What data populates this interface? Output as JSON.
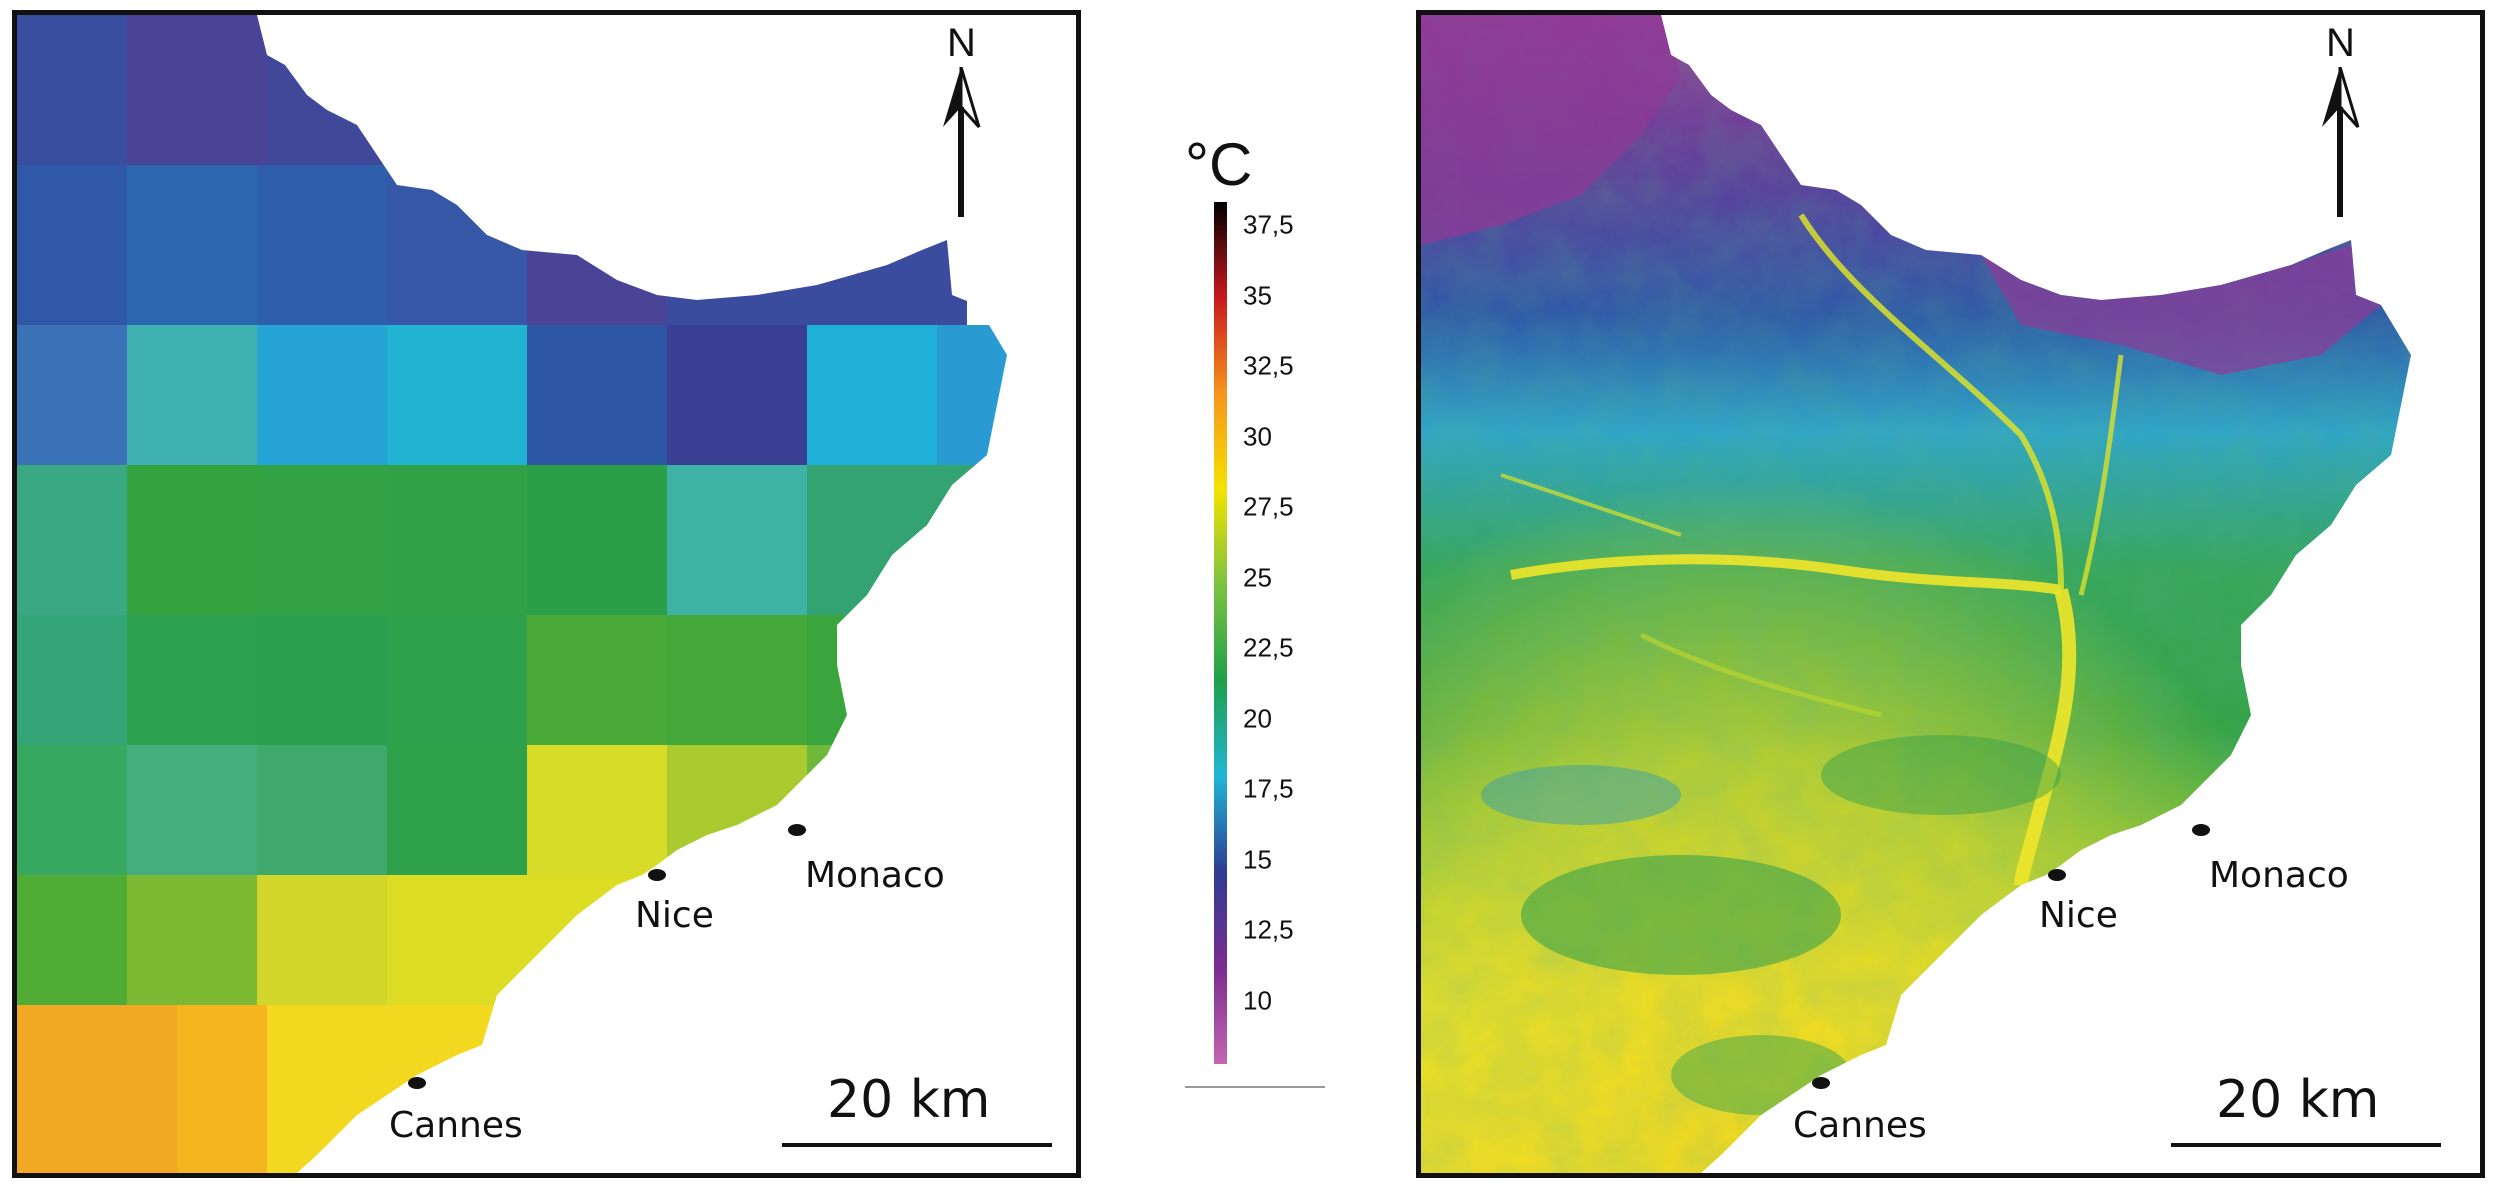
{
  "legend": {
    "unit": "°C",
    "ticks": [
      "37,5",
      "35",
      "32,5",
      "30",
      "27,5",
      "25",
      "22,5",
      "20",
      "17,5",
      "15",
      "12,5",
      "10"
    ],
    "gradient_colors": [
      "#000000",
      "#c8191e",
      "#f7941d",
      "#f4e300",
      "#7cc242",
      "#1fa04a",
      "#21b5d5",
      "#2e3c93",
      "#7a2d8f",
      "#c466b0"
    ]
  },
  "left_map": {
    "north_label": "N",
    "cities": {
      "monaco": "Monaco",
      "nice": "Nice",
      "cannes": "Cannes"
    },
    "scale_label": "20 km"
  },
  "right_map": {
    "north_label": "N",
    "cities": {
      "monaco": "Monaco",
      "nice": "Nice",
      "cannes": "Cannes"
    },
    "scale_label": "20 km"
  }
}
